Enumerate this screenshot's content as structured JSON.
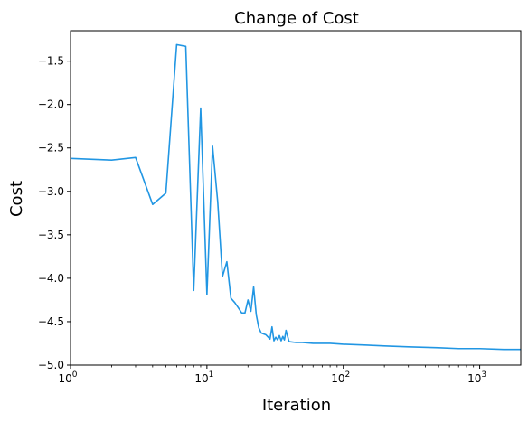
{
  "chart_data": {
    "type": "line",
    "title": "Change of Cost",
    "xlabel": "Iteration",
    "ylabel": "Cost",
    "x_scale": "log",
    "xlim": [
      1,
      2000
    ],
    "ylim": [
      -5.0,
      -1.15
    ],
    "grid": false,
    "x_ticks": [
      {
        "value": 1,
        "label": "10",
        "exp": "0"
      },
      {
        "value": 10,
        "label": "10",
        "exp": "1"
      },
      {
        "value": 100,
        "label": "10",
        "exp": "2"
      },
      {
        "value": 1000,
        "label": "10",
        "exp": "3"
      }
    ],
    "y_ticks": [
      {
        "value": -1.5,
        "label": "−1.5"
      },
      {
        "value": -2.0,
        "label": "−2.0"
      },
      {
        "value": -2.5,
        "label": "−2.5"
      },
      {
        "value": -3.0,
        "label": "−3.0"
      },
      {
        "value": -3.5,
        "label": "−3.5"
      },
      {
        "value": -4.0,
        "label": "−4.0"
      },
      {
        "value": -4.5,
        "label": "−4.5"
      },
      {
        "value": -5.0,
        "label": "−5.0"
      }
    ],
    "series": [
      {
        "color": "#2196e3",
        "x": [
          1,
          2,
          3,
          4,
          5,
          6,
          7,
          8,
          9,
          10,
          11,
          12,
          13,
          14,
          15,
          16,
          17,
          18,
          19,
          20,
          21,
          22,
          23,
          24,
          25,
          27,
          29,
          30,
          31,
          32,
          33,
          34,
          35,
          36,
          37,
          38,
          40,
          45,
          50,
          60,
          80,
          100,
          150,
          200,
          300,
          500,
          700,
          1000,
          1500,
          2000
        ],
        "y": [
          -2.62,
          -2.64,
          -2.61,
          -3.15,
          -3.02,
          -1.31,
          -1.33,
          -4.14,
          -2.04,
          -4.19,
          -2.48,
          -3.12,
          -3.98,
          -3.81,
          -4.23,
          -4.28,
          -4.34,
          -4.4,
          -4.4,
          -4.25,
          -4.38,
          -4.1,
          -4.42,
          -4.57,
          -4.63,
          -4.65,
          -4.7,
          -4.56,
          -4.72,
          -4.68,
          -4.71,
          -4.66,
          -4.72,
          -4.67,
          -4.71,
          -4.6,
          -4.73,
          -4.74,
          -4.74,
          -4.75,
          -4.75,
          -4.76,
          -4.77,
          -4.78,
          -4.79,
          -4.8,
          -4.81,
          -4.81,
          -4.82,
          -4.82
        ]
      }
    ]
  }
}
